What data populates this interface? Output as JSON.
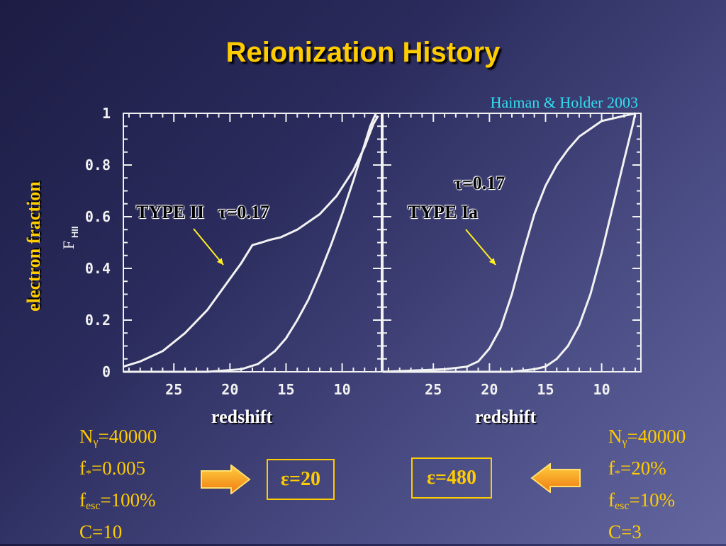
{
  "title": "Reionization History",
  "citation": "Haiman & Holder 2003",
  "ylabel": "electron fraction",
  "inner_ylabel": "F",
  "inner_ylabel_sub": "HII",
  "panels": [
    {
      "xlabel": "redshift",
      "annotation_type": "TYPE II",
      "annotation_tau": "τ=0.17",
      "epsilon": "ε=20",
      "params": [
        "N",
        "γ",
        "=40000",
        "f",
        "*",
        "=0.005",
        "f",
        "esc",
        "=100%",
        "C=10"
      ]
    },
    {
      "xlabel": "redshift",
      "annotation_type": "TYPE Ia",
      "annotation_tau": "τ=0.17",
      "epsilon": "ε=480",
      "params": [
        "N",
        "γ",
        "=40000",
        "f",
        "*",
        "=20%",
        "f",
        "esc",
        "=10%",
        "C=3"
      ]
    }
  ],
  "chart_data": [
    {
      "type": "line",
      "title": "",
      "xlabel": "redshift",
      "ylabel": "electron fraction",
      "x_reversed": true,
      "xlim": [
        29.5,
        6.5
      ],
      "ylim": [
        0,
        1
      ],
      "xticks": [
        "25",
        "20",
        "15",
        "10"
      ],
      "yticks": [
        "0",
        "0.2",
        "0.4",
        "0.6",
        "0.8",
        "1"
      ],
      "series": [
        {
          "x": [
            29.5,
            28,
            26,
            24,
            22,
            20,
            19,
            18,
            17.2,
            16.5,
            15.5,
            14,
            12,
            10.5,
            9,
            8,
            7.2,
            6.8
          ],
          "y": [
            0.02,
            0.04,
            0.08,
            0.15,
            0.24,
            0.36,
            0.42,
            0.49,
            0.5,
            0.51,
            0.52,
            0.55,
            0.61,
            0.68,
            0.78,
            0.87,
            0.96,
            0.99
          ]
        },
        {
          "x": [
            29.5,
            22,
            19,
            17.5,
            16,
            15,
            14,
            13,
            12,
            11,
            10,
            9,
            8,
            7.5,
            7
          ],
          "y": [
            0.0,
            0.0,
            0.01,
            0.03,
            0.08,
            0.13,
            0.2,
            0.28,
            0.38,
            0.49,
            0.61,
            0.74,
            0.88,
            0.95,
            1.0
          ]
        }
      ]
    },
    {
      "type": "line",
      "title": "",
      "xlabel": "redshift",
      "x_reversed": true,
      "xlim": [
        29.5,
        6.5
      ],
      "ylim": [
        0,
        1
      ],
      "xticks": [
        "25",
        "20",
        "15",
        "10"
      ],
      "yticks": [
        "0",
        "0.2",
        "0.4",
        "0.6",
        "0.8",
        "1"
      ],
      "series": [
        {
          "x": [
            29.5,
            24,
            22,
            21,
            20,
            19,
            18,
            17,
            16,
            15,
            14,
            13,
            12,
            11,
            10,
            9,
            8,
            7
          ],
          "y": [
            0.0,
            0.01,
            0.02,
            0.04,
            0.09,
            0.17,
            0.3,
            0.46,
            0.61,
            0.72,
            0.8,
            0.86,
            0.91,
            0.94,
            0.97,
            0.98,
            0.99,
            1.0
          ]
        },
        {
          "x": [
            29.5,
            18,
            16,
            15,
            14,
            13,
            12,
            11,
            10,
            9,
            8,
            7.2,
            7
          ],
          "y": [
            0.0,
            0.0,
            0.01,
            0.02,
            0.05,
            0.1,
            0.18,
            0.3,
            0.46,
            0.64,
            0.82,
            0.96,
            1.0
          ]
        }
      ]
    }
  ]
}
